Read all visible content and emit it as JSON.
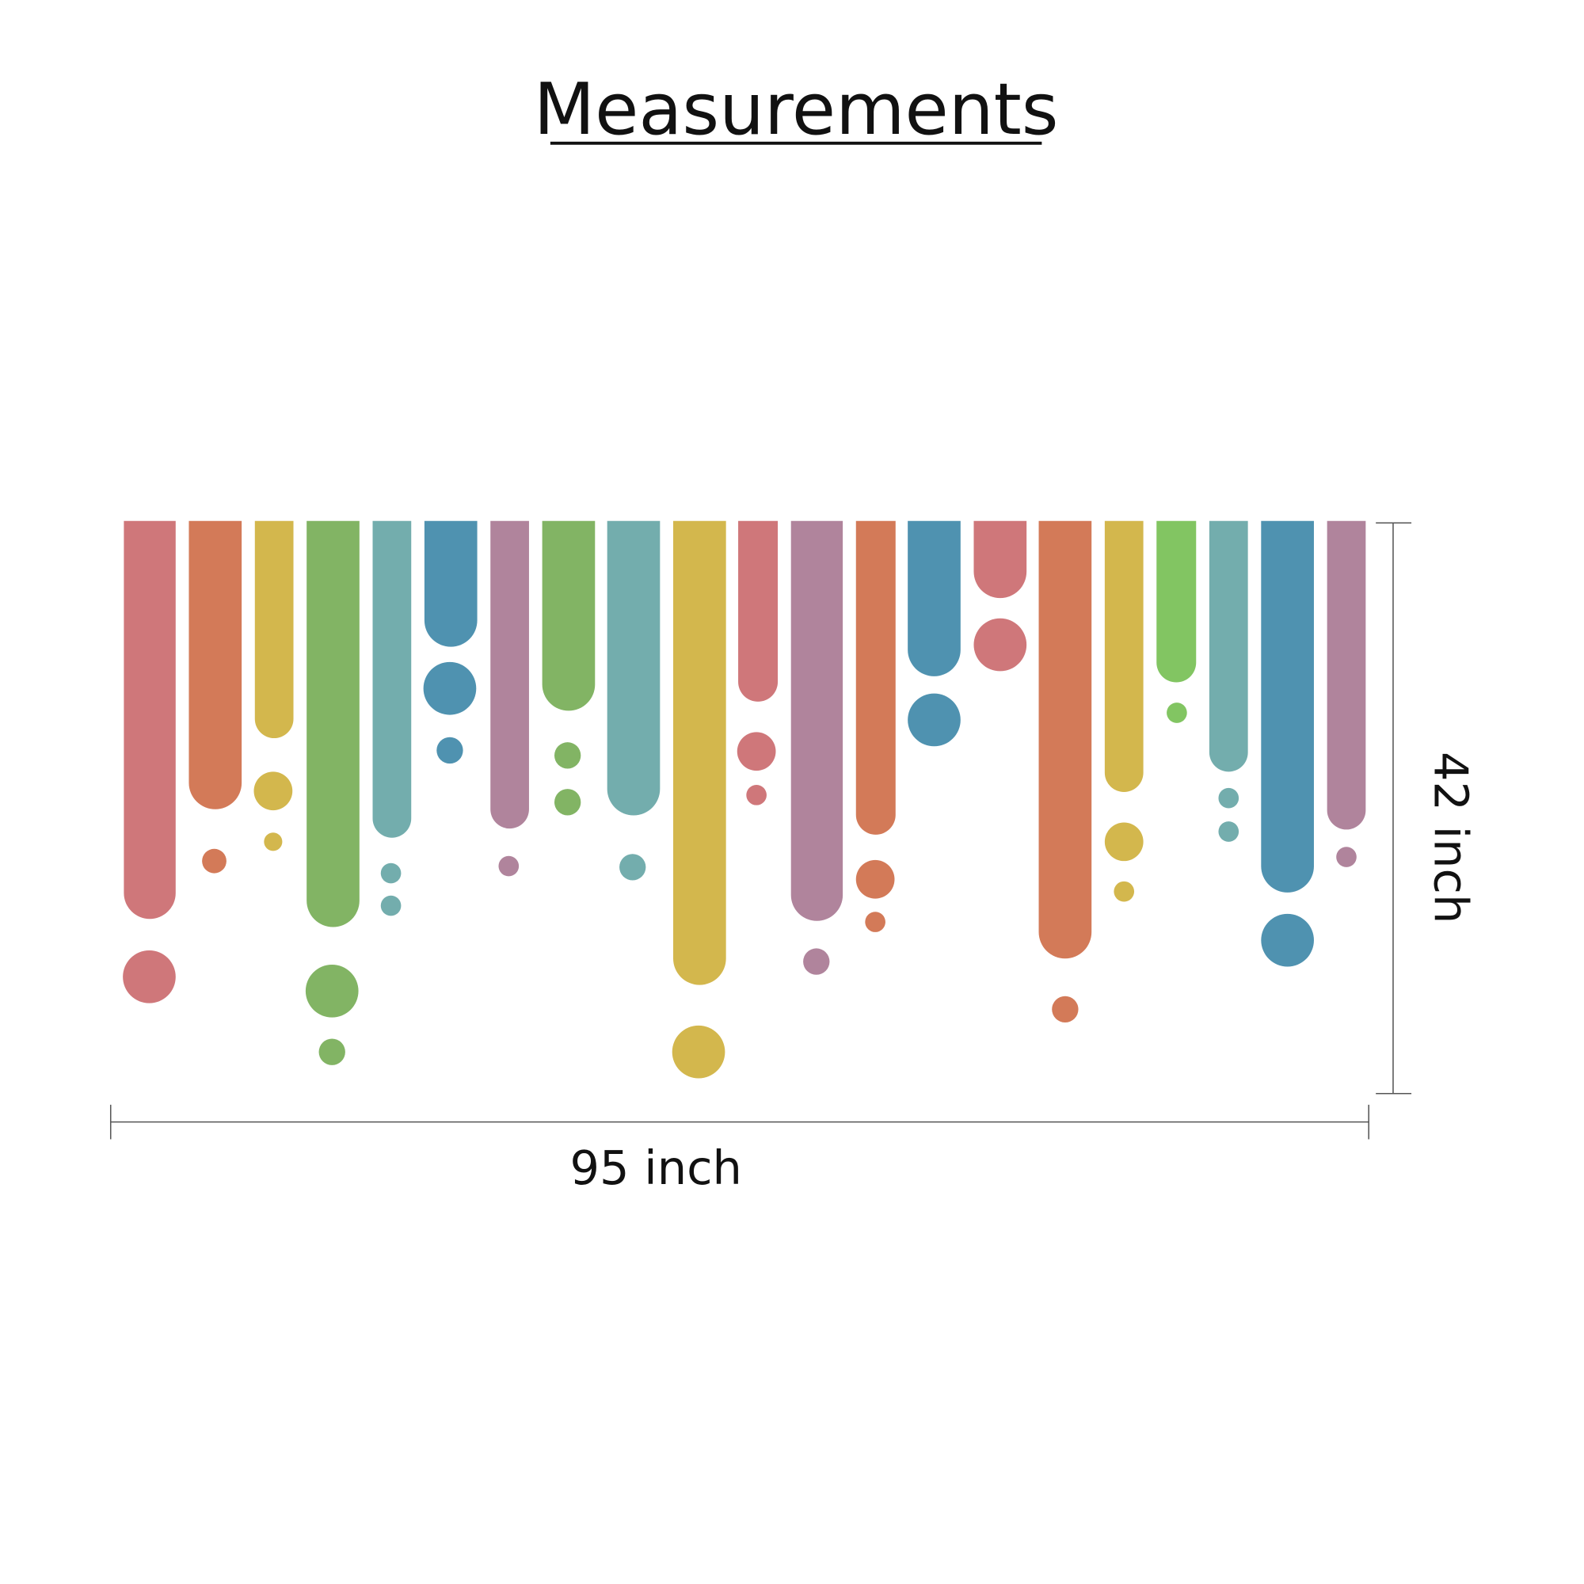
{
  "title": "Measurements",
  "width_label": "95 inch",
  "height_label": "42 inch"
}
